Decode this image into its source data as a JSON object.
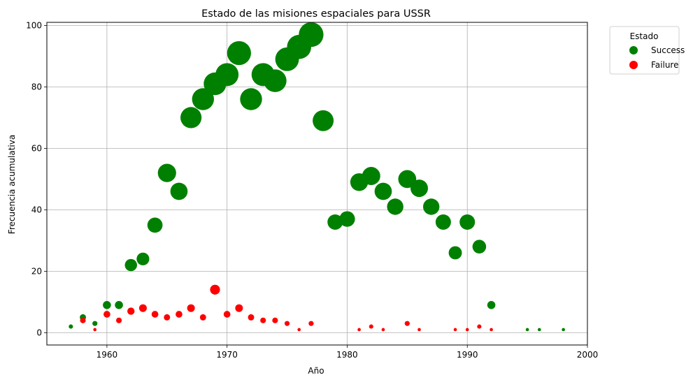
{
  "chart_data": {
    "type": "scatter",
    "title": "Estado de las misiones espaciales para USSR",
    "xlabel": "Año",
    "ylabel": "Frecuencia acumulativa",
    "xlim": [
      1955,
      2000
    ],
    "ylim": [
      -4,
      101
    ],
    "xticks": [
      1960,
      1970,
      1980,
      1990,
      2000
    ],
    "yticks": [
      0,
      20,
      40,
      60,
      80,
      100
    ],
    "grid": true,
    "legend": {
      "title": "Estado",
      "placement": "upper-right-outside"
    },
    "size_encoding": "marker size proportional to value",
    "series": [
      {
        "name": "Success",
        "color": "#008000",
        "points": [
          {
            "x": 1957,
            "y": 2
          },
          {
            "x": 1958,
            "y": 5
          },
          {
            "x": 1959,
            "y": 3
          },
          {
            "x": 1960,
            "y": 9
          },
          {
            "x": 1961,
            "y": 9
          },
          {
            "x": 1962,
            "y": 22
          },
          {
            "x": 1963,
            "y": 24
          },
          {
            "x": 1964,
            "y": 35
          },
          {
            "x": 1965,
            "y": 52
          },
          {
            "x": 1966,
            "y": 46
          },
          {
            "x": 1967,
            "y": 70
          },
          {
            "x": 1968,
            "y": 76
          },
          {
            "x": 1969,
            "y": 81
          },
          {
            "x": 1970,
            "y": 84
          },
          {
            "x": 1971,
            "y": 91
          },
          {
            "x": 1972,
            "y": 76
          },
          {
            "x": 1973,
            "y": 84
          },
          {
            "x": 1974,
            "y": 82
          },
          {
            "x": 1975,
            "y": 89
          },
          {
            "x": 1976,
            "y": 93
          },
          {
            "x": 1977,
            "y": 97
          },
          {
            "x": 1978,
            "y": 69
          },
          {
            "x": 1979,
            "y": 36
          },
          {
            "x": 1980,
            "y": 37
          },
          {
            "x": 1981,
            "y": 49
          },
          {
            "x": 1982,
            "y": 51
          },
          {
            "x": 1983,
            "y": 46
          },
          {
            "x": 1984,
            "y": 41
          },
          {
            "x": 1985,
            "y": 50
          },
          {
            "x": 1986,
            "y": 47
          },
          {
            "x": 1987,
            "y": 41
          },
          {
            "x": 1988,
            "y": 36
          },
          {
            "x": 1989,
            "y": 26
          },
          {
            "x": 1990,
            "y": 36
          },
          {
            "x": 1991,
            "y": 28
          },
          {
            "x": 1992,
            "y": 9
          },
          {
            "x": 1995,
            "y": 1
          },
          {
            "x": 1996,
            "y": 1
          },
          {
            "x": 1998,
            "y": 1
          }
        ]
      },
      {
        "name": "Failure",
        "color": "#ff0000",
        "points": [
          {
            "x": 1958,
            "y": 4
          },
          {
            "x": 1959,
            "y": 1
          },
          {
            "x": 1960,
            "y": 6
          },
          {
            "x": 1961,
            "y": 4
          },
          {
            "x": 1962,
            "y": 7
          },
          {
            "x": 1963,
            "y": 8
          },
          {
            "x": 1964,
            "y": 6
          },
          {
            "x": 1965,
            "y": 5
          },
          {
            "x": 1966,
            "y": 6
          },
          {
            "x": 1967,
            "y": 8
          },
          {
            "x": 1968,
            "y": 5
          },
          {
            "x": 1969,
            "y": 14
          },
          {
            "x": 1970,
            "y": 6
          },
          {
            "x": 1971,
            "y": 8
          },
          {
            "x": 1972,
            "y": 5
          },
          {
            "x": 1973,
            "y": 4
          },
          {
            "x": 1974,
            "y": 4
          },
          {
            "x": 1975,
            "y": 3
          },
          {
            "x": 1976,
            "y": 1
          },
          {
            "x": 1977,
            "y": 3
          },
          {
            "x": 1981,
            "y": 1
          },
          {
            "x": 1982,
            "y": 2
          },
          {
            "x": 1983,
            "y": 1
          },
          {
            "x": 1985,
            "y": 3
          },
          {
            "x": 1986,
            "y": 1
          },
          {
            "x": 1989,
            "y": 1
          },
          {
            "x": 1990,
            "y": 1
          },
          {
            "x": 1991,
            "y": 2
          },
          {
            "x": 1992,
            "y": 1
          }
        ]
      }
    ]
  }
}
